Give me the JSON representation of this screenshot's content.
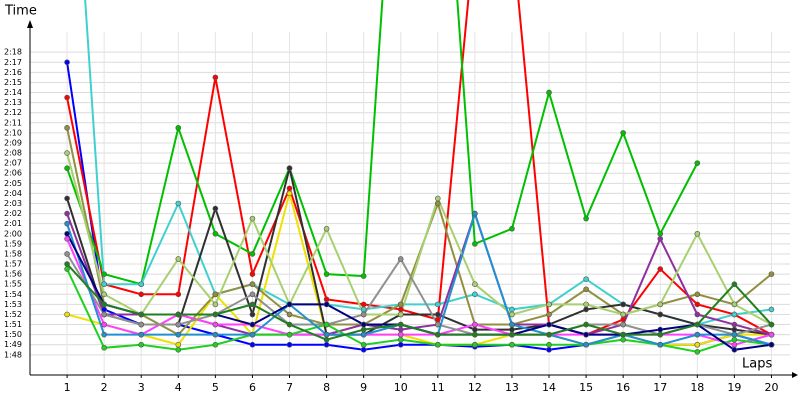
{
  "chart_data": {
    "type": "line",
    "y_label": "Time",
    "x_label": "Laps",
    "x": [
      1,
      2,
      3,
      4,
      5,
      6,
      7,
      8,
      9,
      10,
      11,
      12,
      13,
      14,
      15,
      16,
      17,
      18,
      19,
      20
    ],
    "xlim": [
      0,
      20.5
    ],
    "xticks": [
      1,
      2,
      3,
      4,
      5,
      6,
      7,
      8,
      9,
      10,
      11,
      12,
      13,
      14,
      15,
      16,
      17,
      18,
      19,
      20
    ],
    "ylim": [
      106,
      140
    ],
    "yticks": [
      {
        "value": 108,
        "label": "1:48"
      },
      {
        "value": 109,
        "label": "1:49"
      },
      {
        "value": 110,
        "label": "1:50"
      },
      {
        "value": 111,
        "label": "1:51"
      },
      {
        "value": 112,
        "label": "1:52"
      },
      {
        "value": 113,
        "label": "1:53"
      },
      {
        "value": 114,
        "label": "1:54"
      },
      {
        "value": 115,
        "label": "1:55"
      },
      {
        "value": 116,
        "label": "1:56"
      },
      {
        "value": 117,
        "label": "1:57"
      },
      {
        "value": 118,
        "label": "1:58"
      },
      {
        "value": 119,
        "label": "1:59"
      },
      {
        "value": 120,
        "label": "2:00"
      },
      {
        "value": 121,
        "label": "2:01"
      },
      {
        "value": 122,
        "label": "2:02"
      },
      {
        "value": 123,
        "label": "2:03"
      },
      {
        "value": 124,
        "label": "2:04"
      },
      {
        "value": 125,
        "label": "2:05"
      },
      {
        "value": 126,
        "label": "2:06"
      },
      {
        "value": 127,
        "label": "2:07"
      },
      {
        "value": 128,
        "label": "2:08"
      },
      {
        "value": 129,
        "label": "2:09"
      },
      {
        "value": 130,
        "label": "2:10"
      },
      {
        "value": 131,
        "label": "2:11"
      },
      {
        "value": 132,
        "label": "2:12"
      },
      {
        "value": 133,
        "label": "2:13"
      },
      {
        "value": 134,
        "label": "2:14"
      },
      {
        "value": 135,
        "label": "2:15"
      },
      {
        "value": 136,
        "label": "2:16"
      },
      {
        "value": 137,
        "label": "2:17"
      },
      {
        "value": 138,
        "label": "2:18"
      }
    ],
    "grid": true,
    "series": [
      {
        "color": "#0000ff",
        "values": [
          137,
          112.5,
          111,
          111,
          110,
          109,
          109,
          109,
          108.5,
          109,
          109,
          108.8,
          109,
          108.5,
          109,
          110,
          109,
          109,
          110,
          109
        ]
      },
      {
        "color": "#ff0000",
        "values": [
          133.5,
          115,
          114,
          114,
          135.5,
          116,
          124.5,
          113.5,
          113,
          112.5,
          111.5,
          150,
          150,
          111,
          110,
          111.5,
          116.5,
          113,
          112,
          110
        ]
      },
      {
        "color": "#00c000",
        "values": [
          126.5,
          116,
          115,
          130.5,
          120,
          118,
          126.5,
          116,
          115.8,
          170,
          170,
          119,
          120.5,
          134,
          121.5,
          130,
          120,
          127,
          null,
          null
        ]
      },
      {
        "color": "#40d0d0",
        "values": [
          170,
          115,
          115,
          123,
          114,
          115,
          113,
          113,
          112.5,
          113,
          113,
          114,
          112.5,
          113,
          115.5,
          113,
          112,
          111,
          112,
          112.5
        ]
      },
      {
        "color": "#f0e000",
        "values": [
          112,
          111,
          110,
          109,
          114,
          110,
          124,
          110,
          110,
          110,
          109,
          109,
          110,
          110,
          109,
          110,
          109,
          109,
          110,
          110
        ]
      },
      {
        "color": "#909040",
        "values": [
          130.5,
          113,
          112,
          110,
          114,
          115,
          112,
          111,
          111,
          113,
          123,
          111,
          111,
          112,
          114.5,
          112,
          113,
          114,
          113,
          116
        ]
      },
      {
        "color": "#303030",
        "values": [
          123.5,
          112,
          111,
          111,
          122.5,
          112,
          126.5,
          110,
          110,
          112,
          112,
          110.5,
          110.5,
          111,
          112.5,
          113,
          112,
          111,
          110.5,
          110
        ]
      },
      {
        "color": "#9030a0",
        "values": [
          122,
          112,
          112,
          112,
          111,
          110,
          110,
          110,
          111,
          110.5,
          111,
          122,
          111,
          111,
          110,
          111,
          119.5,
          112,
          111,
          110
        ]
      },
      {
        "color": "#ff40ff",
        "values": [
          119.5,
          111,
          110,
          112,
          111,
          111,
          110,
          110,
          110,
          110,
          110,
          111,
          110,
          110,
          110,
          110,
          110,
          110,
          109,
          110
        ]
      },
      {
        "color": "#a8d070",
        "values": [
          128,
          114,
          112,
          117.5,
          113,
          121.5,
          113,
          120.5,
          112,
          112,
          123.5,
          115,
          112,
          113,
          113,
          112,
          113,
          120,
          113,
          111
        ]
      },
      {
        "color": "#909090",
        "values": [
          118,
          112,
          111,
          111,
          112,
          114,
          111,
          111,
          112,
          117.5,
          111,
          110,
          110,
          110,
          111,
          111,
          110,
          111,
          110,
          111
        ]
      },
      {
        "color": "#20d020",
        "values": [
          116.5,
          108.7,
          109,
          108.5,
          109,
          110,
          110,
          111,
          109,
          109.5,
          109,
          109,
          109,
          109,
          109,
          109.5,
          109,
          108.3,
          109.5,
          109
        ]
      },
      {
        "color": "#2090d0",
        "values": [
          121,
          110,
          110,
          110,
          110,
          110,
          113,
          110,
          110,
          111,
          110,
          122,
          111,
          110,
          109,
          110,
          109,
          110,
          110,
          109
        ]
      },
      {
        "color": "#000080",
        "values": [
          120,
          113,
          112,
          112,
          112,
          111,
          113,
          113,
          111,
          111,
          110,
          110,
          110,
          111,
          110,
          110,
          110.5,
          111,
          108.5,
          109
        ]
      },
      {
        "color": "#208020",
        "values": [
          117,
          113,
          112,
          112,
          112,
          113,
          111,
          109.5,
          110.5,
          111,
          110,
          110,
          110,
          110,
          111,
          110,
          110,
          111,
          115,
          111
        ]
      }
    ]
  }
}
